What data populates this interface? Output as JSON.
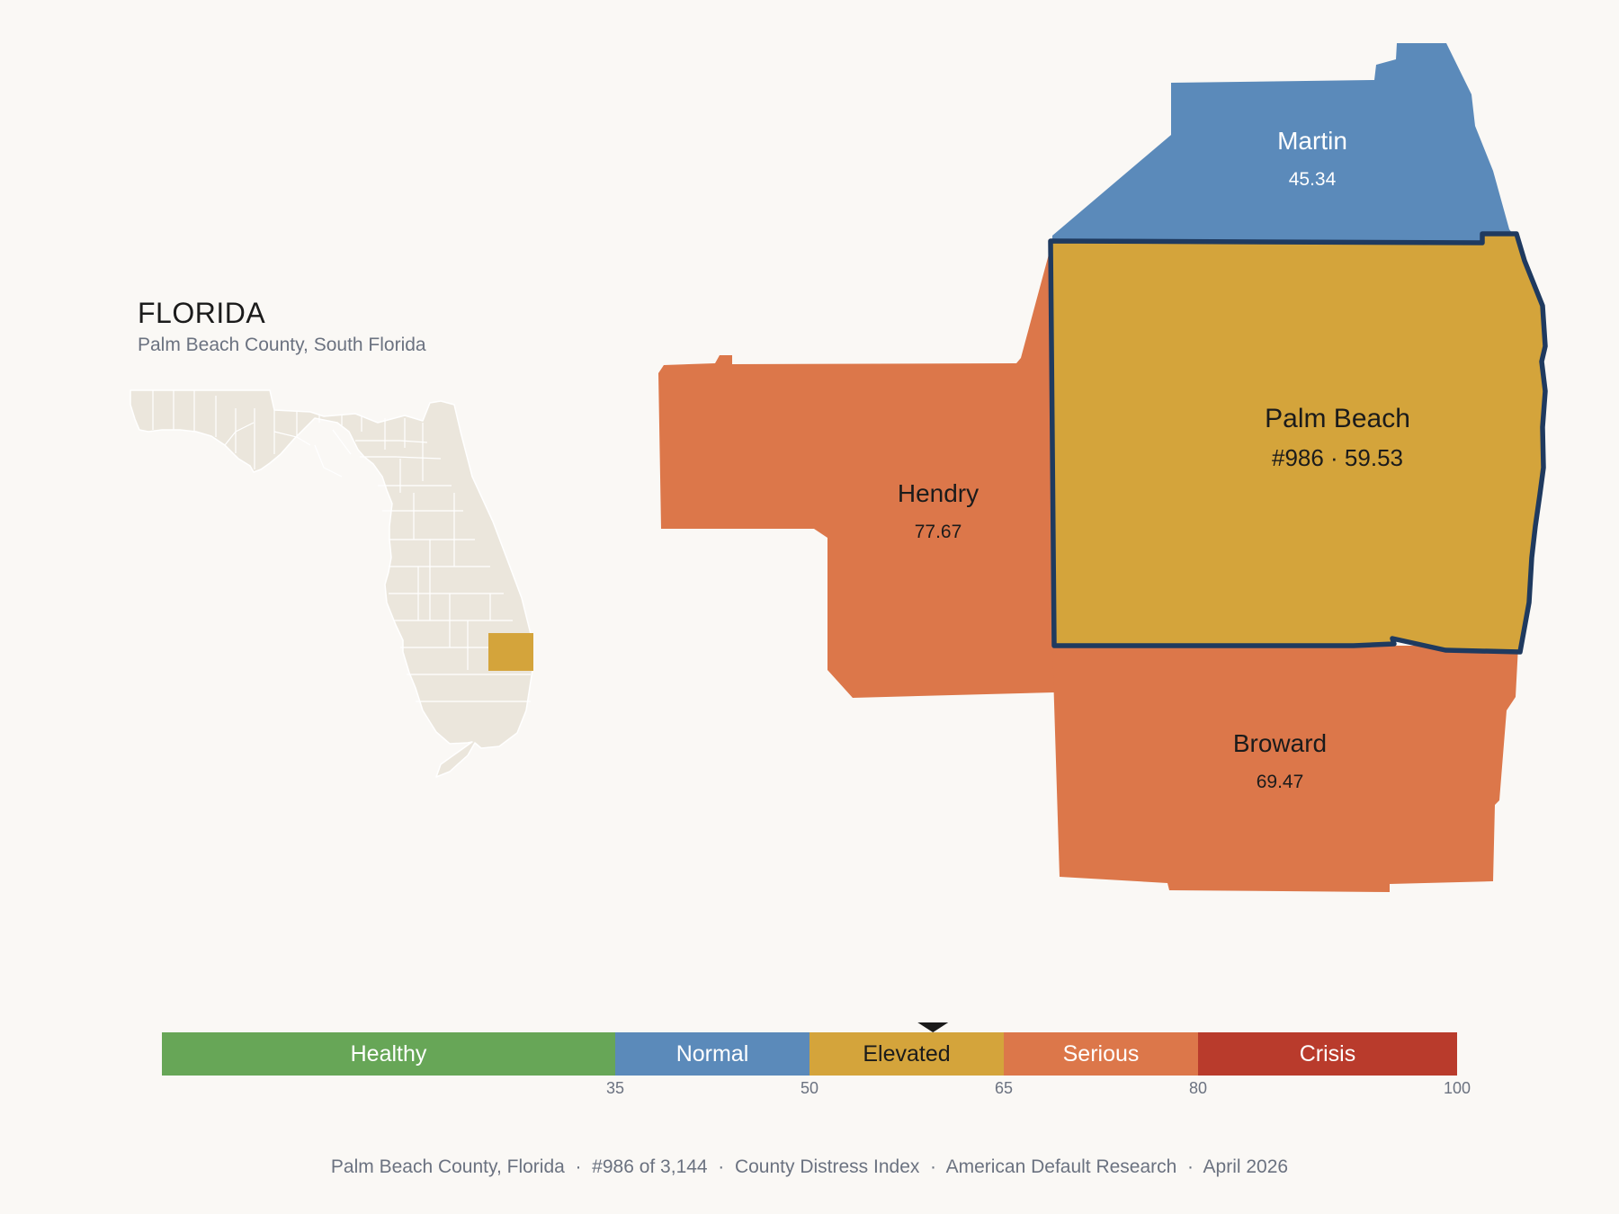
{
  "header": {
    "state": "FLORIDA",
    "subtitle": "Palm Beach County, South Florida"
  },
  "colors": {
    "background": "#faf8f5",
    "inset_fill": "#ebe6dc",
    "inset_stroke": "#ffffff",
    "highlight_border": "#1f3a5f",
    "healthy": "#67a657",
    "normal": "#5b8aba",
    "elevated": "#d4a43b",
    "serious": "#dc774a",
    "crisis": "#b93b2c"
  },
  "counties": [
    {
      "id": "martin",
      "name": "Martin",
      "value": "45.34",
      "color": "#5b8aba",
      "label_color": "#ffffff"
    },
    {
      "id": "hendry",
      "name": "Hendry",
      "value": "77.67",
      "color": "#dc774a",
      "label_color": "#1b1b1b"
    },
    {
      "id": "palm-beach",
      "name": "Palm Beach",
      "value": "#986 · 59.53",
      "color": "#d4a43b",
      "label_color": "#1b1b1b",
      "highlighted": true
    },
    {
      "id": "broward",
      "name": "Broward",
      "value": "69.47",
      "color": "#dc774a",
      "label_color": "#1b1b1b"
    }
  ],
  "legend": {
    "min": 0,
    "max": 100,
    "current_value": 59.53,
    "segments": [
      {
        "label": "Healthy",
        "from": 0,
        "to": 35,
        "color": "#67a657",
        "text_color": "#ffffff"
      },
      {
        "label": "Normal",
        "from": 35,
        "to": 50,
        "color": "#5b8aba",
        "text_color": "#ffffff"
      },
      {
        "label": "Elevated",
        "from": 50,
        "to": 65,
        "color": "#d4a43b",
        "text_color": "#1b1b1b"
      },
      {
        "label": "Serious",
        "from": 65,
        "to": 80,
        "color": "#dc774a",
        "text_color": "#ffffff"
      },
      {
        "label": "Crisis",
        "from": 80,
        "to": 100,
        "color": "#b93b2c",
        "text_color": "#ffffff"
      }
    ],
    "ticks": [
      "35",
      "50",
      "65",
      "80",
      "100"
    ]
  },
  "footer": {
    "parts": [
      "Palm Beach County, Florida",
      "#986 of 3,144",
      "County Distress Index",
      "American Default Research",
      "April 2026"
    ],
    "separator": "  ·  "
  }
}
